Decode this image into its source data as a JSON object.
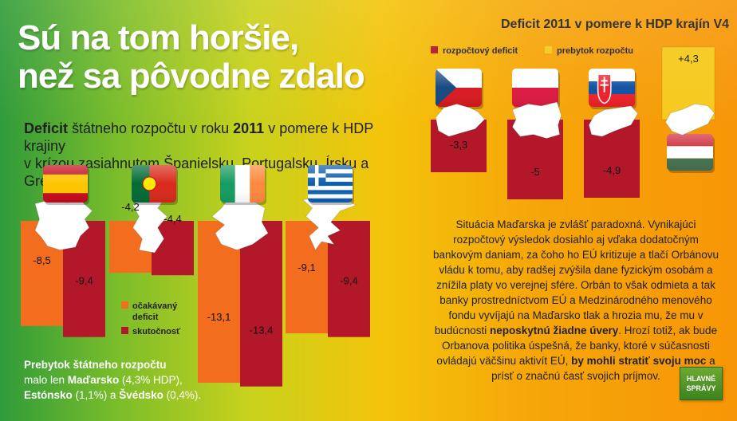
{
  "headline_lines": [
    "Sú na tom horšie,",
    "než sa pôvodne zdalo"
  ],
  "subtitle": {
    "w1": "Deficit",
    "t1": " štátneho rozpočtu v roku ",
    "w2": "2011",
    "t2": " v pomere k HDP krajiny",
    "t3": "v krízou zasiahnutom Španielsku, Portugalsku, Írsku a Grécku."
  },
  "colors": {
    "expected": "#f36d1e",
    "actual": "#b3172a",
    "surplus": "#f6c91b",
    "map": "#ffffff"
  },
  "chart_data": [
    {
      "type": "bar",
      "title": "",
      "categories": [
        "Španielsko",
        "Portugalsko",
        "Írsko",
        "Grécko"
      ],
      "series": [
        {
          "name": "očakávaný deficit",
          "values": [
            -8.5,
            -4.2,
            -13.1,
            -9.1
          ]
        },
        {
          "name": "skutočnosť",
          "values": [
            -9.4,
            -4.4,
            -13.4,
            -9.4
          ]
        }
      ],
      "data_labels": {
        "expected": [
          "-8,5",
          "-4,2",
          "-13,1",
          "-9,1"
        ],
        "actual": [
          "-9,4",
          "-4,4",
          "-13,4",
          "-9,4"
        ]
      },
      "icons": [
        "spain-flag-icon",
        "portugal-flag-icon",
        "ireland-flag-icon",
        "greece-flag-icon"
      ],
      "legend": {
        "expected_line1": "očakávaný",
        "expected_line2": "deficit",
        "actual": "skutočnosť"
      },
      "ylim": [
        -13.4,
        0
      ]
    },
    {
      "type": "bar",
      "title": "Deficit 2011 v pomere k HDP krajín V4",
      "categories": [
        "Česko",
        "Poľsko",
        "Slovensko",
        "Maďarsko"
      ],
      "series": [
        {
          "name": "rozpočtový deficit",
          "values": [
            -3.3,
            -5,
            -4.9,
            null
          ]
        },
        {
          "name": "prebytok rozpočtu",
          "values": [
            null,
            null,
            null,
            4.3
          ]
        }
      ],
      "data_labels": [
        "-3,3",
        "-5",
        "-4,9",
        "+4,3"
      ],
      "icons": [
        "czech-flag-icon",
        "poland-flag-icon",
        "slovakia-flag-icon",
        "hungary-flag-icon"
      ],
      "legend": {
        "deficit": "rozpočtový deficit",
        "surplus": "prebytok rozpočtu"
      },
      "ylim": [
        -5,
        4.3
      ]
    }
  ],
  "paragraph": {
    "p1": "Situácia Maďarska je zvlášť paradoxná. Vynikajúci rozpočtový výsledok dosiahlo aj vďaka dodatočným bankovým daniam, za čoho ho EÚ kritizuje a tlačí Orbánovu vládu k tomu, aby radšej zvýšila dane fyzickým osobám a znížila platy vo verejnej sfére. Orbán to však odmieta a tak banky prostredníctvom EÚ a Medzinárodného menového fondu vyvíjajú na Maďarsko tlak a hrozia mu, že mu v budúcnosti ",
    "b1": "neposkytnú žiadne úvery",
    "p2": ". Hrozí totiž, ak bude Orbanova politika úspešná, že banky, ktoré v súčasnosti ovládajú väčšinu aktivít EÚ, ",
    "b2": "by mohli stratiť svoju moc",
    "p3": " a prísť o značnú časť svojich príjmov."
  },
  "surplus_note": {
    "b1": "Prebytok štátneho rozpočtu",
    "t1": "malo len ",
    "b2": "Maďarsko",
    "t2": " (4,3% HDP),",
    "b3": "Estónsko",
    "t3": " (1,1%) a ",
    "b4": "Švédsko",
    "t4": " (0,4%)."
  },
  "logo": {
    "line1": "HLAVNÉ",
    "line2": "SPRÁVY"
  }
}
